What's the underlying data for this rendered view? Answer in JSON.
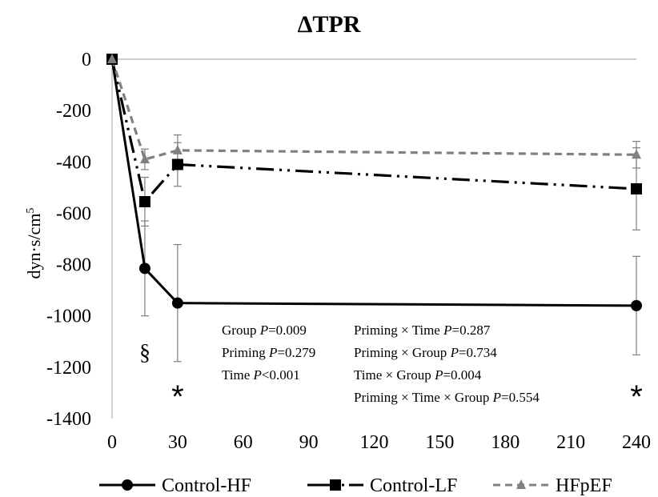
{
  "chart_data": {
    "type": "line",
    "title": "ΔTPR",
    "ylabel_main": "dyn·s/cm",
    "ylabel_sup": "5",
    "xlabel": "",
    "x_ticks": [
      0,
      30,
      60,
      90,
      120,
      150,
      180,
      210,
      240
    ],
    "y_ticks": [
      0,
      -200,
      -400,
      -600,
      -800,
      -1000,
      -1200,
      -1400
    ],
    "xlim": [
      0,
      240
    ],
    "ylim": [
      -1400,
      0
    ],
    "grid": false,
    "legend_position": "bottom",
    "series": [
      {
        "name": "Control-HF",
        "color": "#000000",
        "line_style": "solid",
        "marker": "circle",
        "points": [
          {
            "x": 0,
            "y": 0,
            "err": 0
          },
          {
            "x": 15,
            "y": -815,
            "err": 185
          },
          {
            "x": 30,
            "y": -950,
            "err": 228
          },
          {
            "x": 240,
            "y": -960,
            "err": 192
          }
        ]
      },
      {
        "name": "Control-LF",
        "color": "#000000",
        "line_style": "dash-dot-dot",
        "marker": "square",
        "points": [
          {
            "x": 0,
            "y": 0,
            "err": 0
          },
          {
            "x": 15,
            "y": -555,
            "err": 95
          },
          {
            "x": 30,
            "y": -410,
            "err": 85
          },
          {
            "x": 240,
            "y": -505,
            "err": 160
          }
        ]
      },
      {
        "name": "HFpEF",
        "color": "#808080",
        "line_style": "dashed",
        "marker": "triangle",
        "points": [
          {
            "x": 0,
            "y": 0,
            "err": 0
          },
          {
            "x": 15,
            "y": -390,
            "err": 40
          },
          {
            "x": 30,
            "y": -355,
            "err": 60
          },
          {
            "x": 240,
            "y": -372,
            "err": 52
          }
        ]
      }
    ],
    "annotations": [
      {
        "text": "§",
        "x": 15,
        "y": -1140
      },
      {
        "text": "*",
        "x": 30,
        "y": -1300
      },
      {
        "text": "*",
        "x": 240,
        "y": -1300
      }
    ],
    "stats_col1": [
      {
        "label": "Group ",
        "p": "P",
        "value": "=0.009"
      },
      {
        "label": "Priming ",
        "p": "P",
        "value": "=0.279"
      },
      {
        "label": "Time ",
        "p": "P",
        "value": "<0.001"
      }
    ],
    "stats_col2": [
      {
        "label": "Priming × Time ",
        "p": "P",
        "value": "=0.287"
      },
      {
        "label": "Priming × Group ",
        "p": "P",
        "value": "=0.734"
      },
      {
        "label": "Time × Group ",
        "p": "P",
        "value": "=0.004"
      },
      {
        "label": "Priming × Time × Group ",
        "p": "P",
        "value": "=0.554"
      }
    ]
  }
}
